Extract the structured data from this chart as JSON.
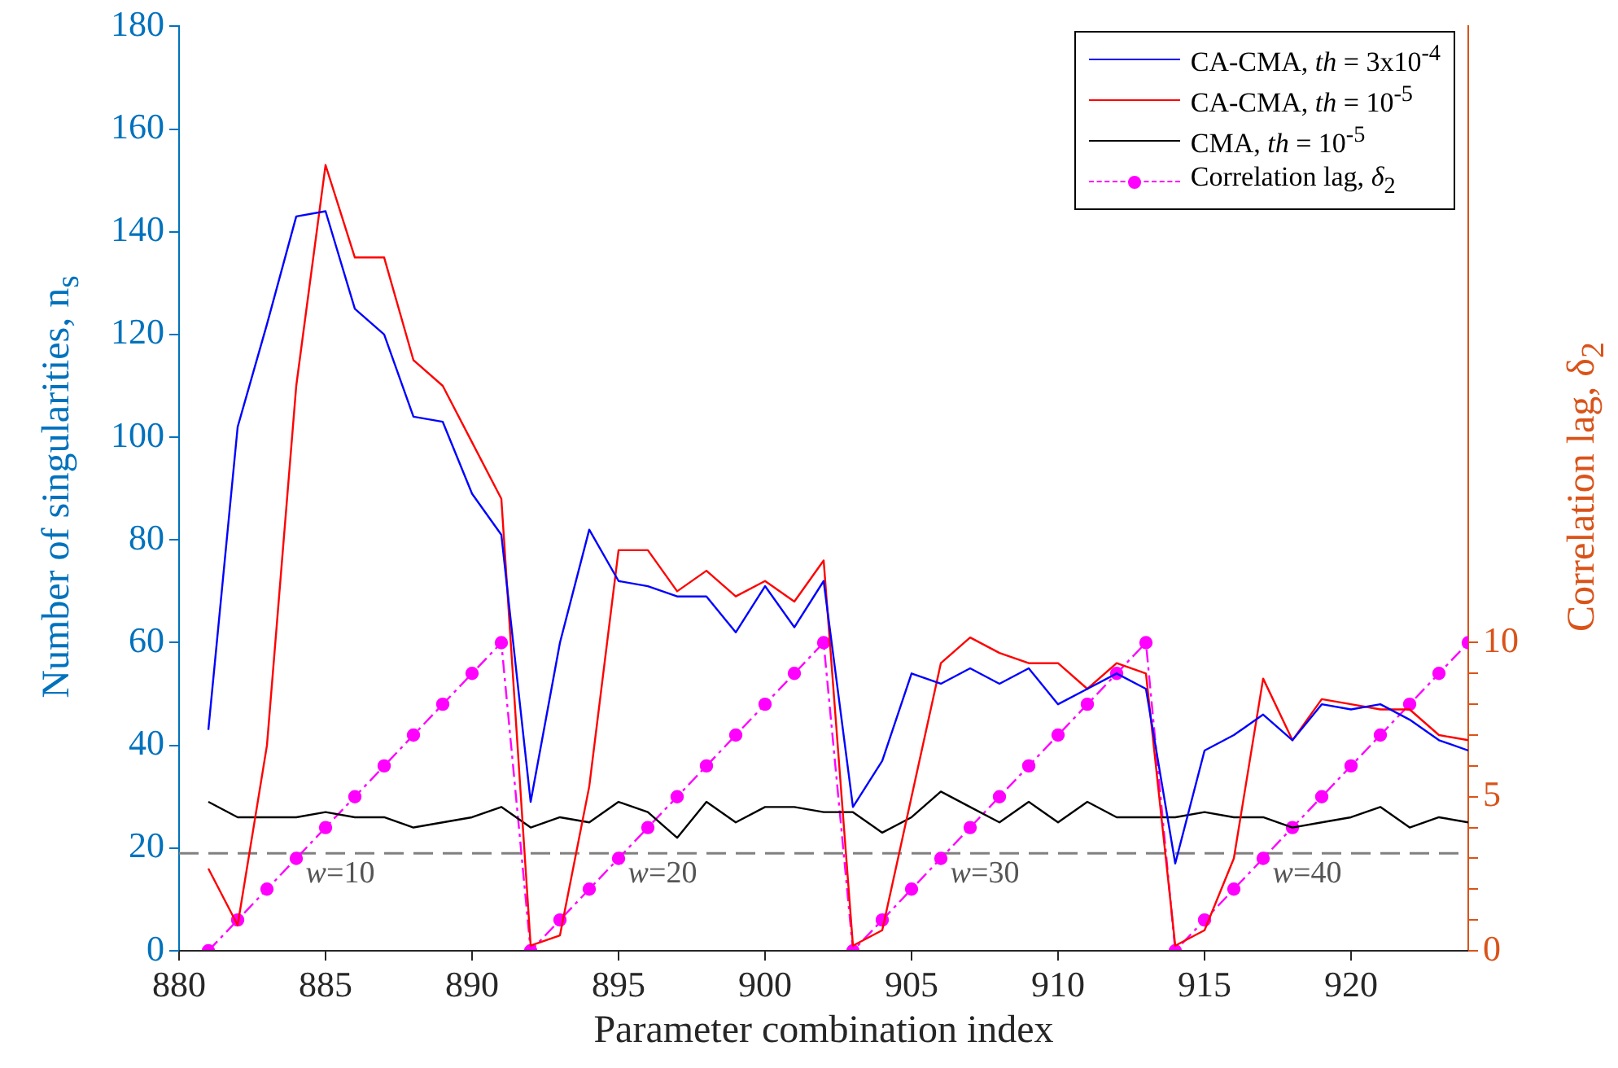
{
  "chart_data": {
    "type": "line",
    "xlabel": "Parameter combination index",
    "ylabel": "Number of singularities, n$_{s}$",
    "y2label": "Correlation lag, δ$_{2}$",
    "x": [
      881,
      882,
      883,
      884,
      885,
      886,
      887,
      888,
      889,
      890,
      891,
      892,
      893,
      894,
      895,
      896,
      897,
      898,
      899,
      900,
      901,
      902,
      903,
      904,
      905,
      906,
      907,
      908,
      909,
      910,
      911,
      912,
      913,
      914,
      915,
      916,
      917,
      918,
      919,
      920,
      921,
      922,
      923,
      924
    ],
    "series": [
      {
        "name": "CA-CMA, th = 3x10$^{-4}$",
        "color": "#0000ff",
        "marker": "none",
        "line_style": "solid",
        "values": [
          43,
          102,
          122,
          143,
          144,
          125,
          120,
          104,
          103,
          89,
          81,
          29,
          60,
          82,
          72,
          71,
          69,
          69,
          62,
          71,
          63,
          72,
          28,
          37,
          54,
          52,
          55,
          52,
          55,
          48,
          51,
          54,
          51,
          17,
          39,
          42,
          46,
          41,
          48,
          47,
          48,
          45,
          41,
          39
        ]
      },
      {
        "name": "CA-CMA, th = 10$^{-5}$",
        "color": "#ff0000",
        "marker": "none",
        "line_style": "solid",
        "values": [
          16,
          5,
          40,
          110,
          153,
          135,
          135,
          115,
          110,
          99,
          88,
          1,
          3,
          32,
          78,
          78,
          70,
          74,
          69,
          72,
          68,
          76,
          1,
          4,
          30,
          56,
          61,
          58,
          56,
          56,
          51,
          56,
          54,
          1,
          4,
          18,
          53,
          41,
          49,
          48,
          47,
          47,
          42,
          41
        ]
      },
      {
        "name": "CMA, th = 10$^{-5}$",
        "color": "#000000",
        "marker": "none",
        "line_style": "solid",
        "values": [
          29,
          26,
          26,
          26,
          27,
          26,
          26,
          24,
          25,
          26,
          28,
          24,
          26,
          25,
          29,
          27,
          22,
          29,
          25,
          28,
          28,
          27,
          27,
          23,
          26,
          31,
          28,
          25,
          29,
          25,
          29,
          26,
          26,
          26,
          27,
          26,
          26,
          24,
          25,
          26,
          28,
          24,
          26,
          25
        ]
      },
      {
        "name": "Correlation lag, δ$_{2}$",
        "color": "#ff00ff",
        "marker": "circle",
        "line_style": "dashed",
        "axis": "y2",
        "values": [
          0,
          1,
          2,
          3,
          4,
          5,
          6,
          7,
          8,
          9,
          10,
          0,
          1,
          2,
          3,
          4,
          5,
          6,
          7,
          8,
          9,
          10,
          0,
          1,
          2,
          3,
          4,
          5,
          6,
          7,
          8,
          9,
          10,
          0,
          1,
          2,
          3,
          4,
          5,
          6,
          7,
          8,
          9,
          10
        ]
      }
    ],
    "xlim": [
      880,
      924
    ],
    "xticks": [
      880,
      885,
      890,
      895,
      900,
      905,
      910,
      915,
      920
    ],
    "ylim": [
      0,
      180
    ],
    "yticks": [
      0,
      20,
      40,
      60,
      80,
      100,
      120,
      140,
      160,
      180
    ],
    "y2lim": [
      0,
      30
    ],
    "y2ticks": [
      0,
      {
        "value": 1,
        "label": null
      },
      {
        "value": 2,
        "label": null
      },
      {
        "value": 3,
        "label": null
      },
      {
        "value": 4,
        "label": null
      },
      5,
      {
        "value": 6,
        "label": null
      },
      {
        "value": 7,
        "label": null
      },
      {
        "value": 8,
        "label": null
      },
      {
        "value": 9,
        "label": null
      },
      10
    ],
    "ref_lines": [
      {
        "axis": "y",
        "value": 19,
        "label": null,
        "color": "#808080",
        "line_style": "dashed"
      }
    ],
    "annotations": [
      "w=10",
      "w=20",
      "w=30",
      "w=40"
    ],
    "grid": false,
    "legend": "top right"
  }
}
